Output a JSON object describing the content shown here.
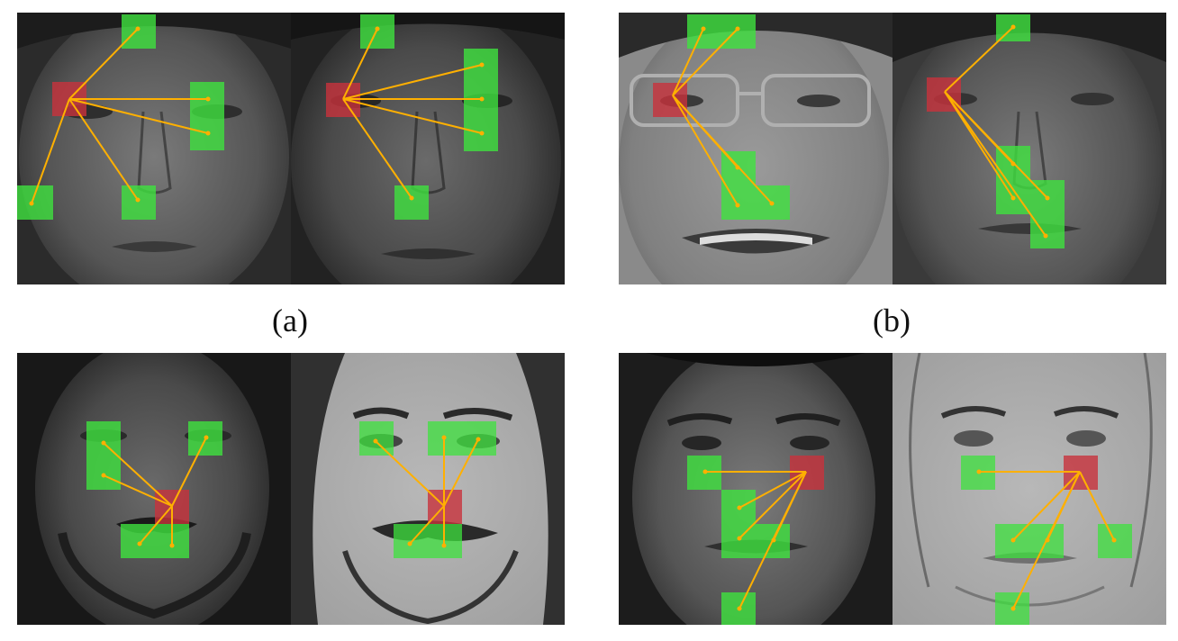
{
  "captions": {
    "a": "(a)",
    "b": "(b)"
  },
  "colors": {
    "patch_source": "#c8323c",
    "patch_target": "#3ee23e",
    "link_line": "#ffb000",
    "background": "#ffffff"
  },
  "icons": {
    "face_photo": "face-photo-icon",
    "face_sketch": "face-sketch-icon"
  }
}
